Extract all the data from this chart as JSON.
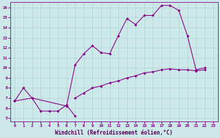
{
  "xlabel": "Windchill (Refroidissement éolien,°C)",
  "bg_color": "#cce8e8",
  "grid_color": "#aacccc",
  "line_color": "#880088",
  "xlim": [
    -0.5,
    23.5
  ],
  "ylim": [
    4.7,
    16.5
  ],
  "xticks": [
    0,
    1,
    2,
    3,
    4,
    5,
    6,
    7,
    8,
    9,
    10,
    11,
    12,
    13,
    14,
    15,
    16,
    17,
    18,
    19,
    20,
    21,
    22,
    23
  ],
  "yticks": [
    5,
    6,
    7,
    8,
    9,
    10,
    11,
    12,
    13,
    14,
    15,
    16
  ],
  "curve_a_x": [
    0,
    1,
    2,
    3,
    4,
    5,
    6,
    7
  ],
  "curve_a_y": [
    6.7,
    8.0,
    7.0,
    5.7,
    5.7,
    5.7,
    6.3,
    5.2
  ],
  "curve_b_x": [
    0,
    2,
    6,
    7,
    8,
    9,
    10,
    11,
    12,
    13,
    14,
    15,
    16,
    17,
    18,
    19,
    20,
    21,
    22
  ],
  "curve_b_y": [
    6.7,
    7.0,
    6.2,
    10.3,
    11.4,
    12.2,
    11.5,
    11.4,
    13.2,
    14.9,
    14.3,
    15.2,
    15.2,
    16.2,
    16.2,
    15.7,
    13.2,
    9.8,
    10.0
  ],
  "curve_c_x": [
    7,
    8,
    9,
    10,
    11,
    12,
    13,
    14,
    15,
    16,
    17,
    18,
    19,
    20,
    21,
    22
  ],
  "curve_c_y": [
    7.0,
    7.5,
    8.0,
    8.2,
    8.5,
    8.7,
    9.0,
    9.2,
    9.5,
    9.6,
    9.8,
    9.9,
    9.8,
    9.8,
    9.7,
    9.8
  ],
  "font_family": "monospace",
  "tick_fontsize": 4.5,
  "label_fontsize": 5.5,
  "marker": "D",
  "marker_size": 1.8,
  "linewidth": 0.8
}
